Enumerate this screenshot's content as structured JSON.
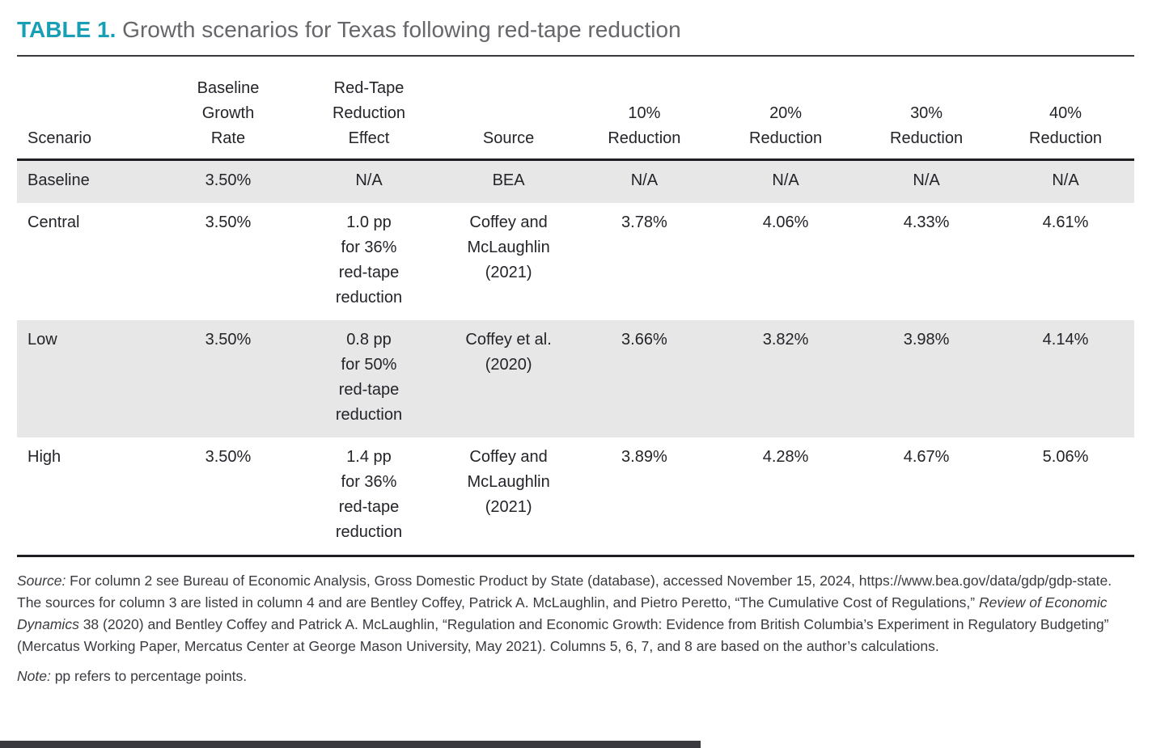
{
  "title": {
    "label": "TABLE 1.",
    "text": "Growth scenarios for Texas following red-tape reduction"
  },
  "colors": {
    "accent_teal": "#189fb5",
    "title_gray": "#67666b",
    "row_shade": "#e8e7e7",
    "rule_dark": "#1f1e22"
  },
  "table": {
    "headers": [
      "Scenario",
      "Baseline\nGrowth\nRate",
      "Red-Tape\nReduction\nEffect",
      "Source",
      "10%\nReduction",
      "20%\nReduction",
      "30%\nReduction",
      "40%\nReduction"
    ],
    "rows": [
      {
        "name": "baseline",
        "cells": [
          "Baseline",
          "3.50%",
          "N/A",
          "BEA",
          "N/A",
          "N/A",
          "N/A",
          "N/A"
        ]
      },
      {
        "name": "central",
        "cells": [
          "Central",
          "3.50%",
          "1.0 pp\nfor 36%\nred-tape\nreduction",
          "Coffey and\nMcLaughlin\n(2021)",
          "3.78%",
          "4.06%",
          "4.33%",
          "4.61%"
        ]
      },
      {
        "name": "low",
        "cells": [
          "Low",
          "3.50%",
          "0.8 pp\nfor 50%\nred-tape\nreduction",
          "Coffey et al.\n(2020)",
          "3.66%",
          "3.82%",
          "3.98%",
          "4.14%"
        ]
      },
      {
        "name": "high",
        "cells": [
          "High",
          "3.50%",
          "1.4 pp\nfor 36%\nred-tape\nreduction",
          "Coffey and\nMcLaughlin\n(2021)",
          "3.89%",
          "4.28%",
          "4.67%",
          "5.06%"
        ]
      }
    ]
  },
  "source_note": {
    "label": "Source:",
    "part1": " For column 2 see Bureau of Economic Analysis, Gross Domestic Product by State (database), accessed November 15, 2024, https://www.bea.gov/data/gdp/gdp-state. The sources for column 3 are listed in column 4 and are Bentley Coffey, Patrick A. McLaughlin, and Pietro Peretto, “The Cumulative Cost of Regulations,” ",
    "italic": "Review of Economic Dynamics",
    "part2": " 38 (2020) and Bentley Coffey and Patrick A. McLaughlin, “Regulation and Economic Growth: Evidence from British Columbia’s Experiment in Regulatory Budgeting” (Mercatus Working Paper, Mercatus Center at George Mason University, May 2021). Columns 5, 6, 7, and 8 are based on the author’s calculations."
  },
  "note": {
    "label": "Note:",
    "text": " pp refers to percentage points."
  }
}
